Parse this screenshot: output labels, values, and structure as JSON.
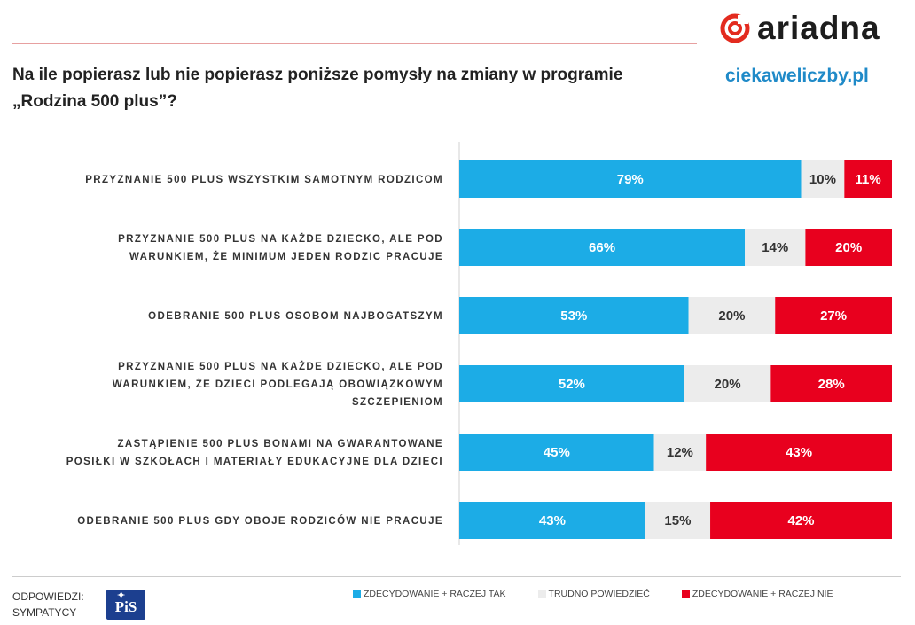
{
  "header": {
    "title": "Na ile popierasz lub nie popierasz poniższe pomysły na zmiany w programie „Rodzina 500 plus”?",
    "logo_text": "ariadna",
    "site": "ciekaweliczby.pl"
  },
  "colors": {
    "yes": "#1cace6",
    "neutral": "#ececec",
    "no": "#e8001e"
  },
  "footer": {
    "answers_label_line1": "ODPOWIEDZI:",
    "answers_label_line2": "SYMPATYCY",
    "party_logo_text": "PiS"
  },
  "legend": {
    "yes": "ZDECYDOWANIE + RACZEJ TAK",
    "neutral": "TRUDNO POWIEDZIEĆ",
    "no": "ZDECYDOWANIE + RACZEJ NIE"
  },
  "chart_data": {
    "type": "bar",
    "orientation": "horizontal-stacked-100",
    "categories": [
      [
        "PRZYZNANIE 500 PLUS WSZYSTKIM SAMOTNYM RODZICOM"
      ],
      [
        "PRZYZNANIE 500 PLUS NA KAŻDE DZIECKO, ALE POD",
        "WARUNKIEM, ŻE MINIMUM JEDEN RODZIC PRACUJE"
      ],
      [
        "ODEBRANIE 500 PLUS OSOBOM NAJBOGATSZYM"
      ],
      [
        "PRZYZNANIE 500 PLUS NA KAŻDE DZIECKO, ALE POD",
        "WARUNKIEM, ŻE DZIECI PODLEGAJĄ  OBOWIĄZKOWYM",
        "SZCZEPIENIOM"
      ],
      [
        "ZASTĄPIENIE 500 PLUS BONAMI NA GWARANTOWANE",
        "POSIŁKI W SZKOŁACH I  MATERIAŁY EDUKACYJNE DLA DZIECI"
      ],
      [
        "ODEBRANIE 500 PLUS  GDY OBOJE RODZICÓW NIE PRACUJE"
      ]
    ],
    "series": [
      {
        "name": "ZDECYDOWANIE + RACZEJ TAK",
        "values": [
          79,
          66,
          53,
          52,
          45,
          43
        ],
        "labels": [
          "79%",
          "66%",
          "53%",
          "52%",
          "45%",
          "43%"
        ]
      },
      {
        "name": "TRUDNO POWIEDZIEĆ",
        "values": [
          10,
          14,
          20,
          20,
          12,
          15
        ],
        "labels": [
          "10%",
          "14%",
          "20%",
          "20%",
          "12%",
          "15%"
        ]
      },
      {
        "name": "ZDECYDOWANIE + RACZEJ NIE",
        "values": [
          11,
          20,
          27,
          28,
          43,
          42
        ],
        "labels": [
          "11%",
          "20%",
          "27%",
          "28%",
          "43%",
          "42%"
        ]
      }
    ],
    "xlim": [
      0,
      100
    ],
    "grid": false,
    "legend_position": "bottom"
  }
}
